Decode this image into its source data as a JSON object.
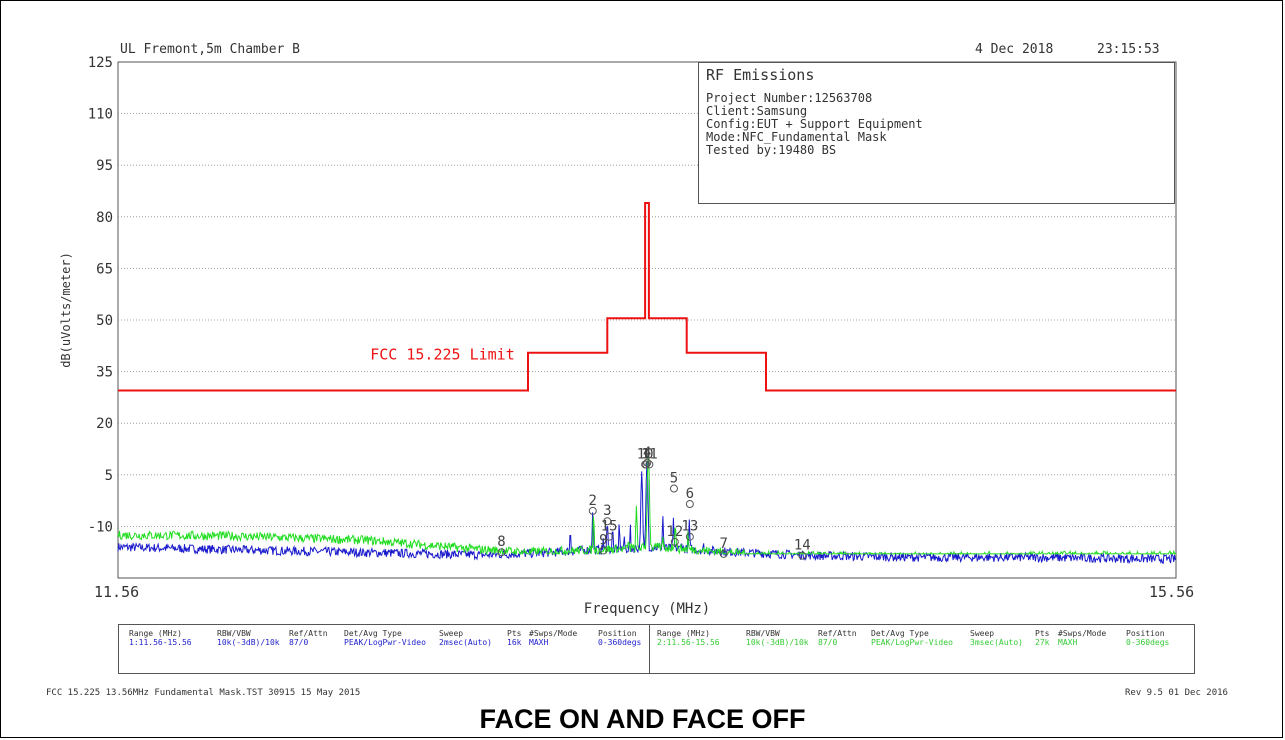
{
  "header": {
    "site": "UL Fremont,5m Chamber B",
    "date": "4 Dec 2018",
    "time": "23:15:53"
  },
  "info_box": {
    "title": "RF Emissions",
    "lines": [
      "Project Number:12563708",
      "Client:Samsung",
      "Config:EUT + Support Equipment",
      "Mode:NFC_Fundamental Mask",
      "Tested by:19480 BS"
    ]
  },
  "chart_data": {
    "type": "line",
    "xlabel": "Frequency (MHz)",
    "ylabel": "dB(uVolts/meter)",
    "xlim": [
      11.56,
      15.56
    ],
    "ylim": [
      -25,
      125
    ],
    "x_tick_labels": [
      "11.56",
      "15.56"
    ],
    "y_ticks": [
      125,
      110,
      95,
      80,
      65,
      50,
      35,
      20,
      5,
      -10
    ],
    "grid": true,
    "limit_line": {
      "name": "FCC 15.225 Limit",
      "color": "#ee1111",
      "points": [
        [
          11.56,
          29.5
        ],
        [
          13.11,
          29.5
        ],
        [
          13.11,
          40.5
        ],
        [
          13.41,
          40.5
        ],
        [
          13.41,
          50.5
        ],
        [
          13.553,
          50.5
        ],
        [
          13.553,
          84
        ],
        [
          13.567,
          84
        ],
        [
          13.567,
          50.5
        ],
        [
          13.71,
          50.5
        ],
        [
          13.71,
          40.5
        ],
        [
          14.01,
          40.5
        ],
        [
          14.01,
          29.5
        ],
        [
          15.56,
          29.5
        ]
      ]
    },
    "series": [
      {
        "color": "#1a1acc",
        "base": [
          [
            11.56,
            -16.0
          ],
          [
            12.0,
            -16.8
          ],
          [
            12.5,
            -17.6
          ],
          [
            12.95,
            -18.3
          ],
          [
            13.2,
            -17.6
          ],
          [
            13.3,
            -17.0
          ],
          [
            13.5,
            -16.5
          ],
          [
            13.56,
            -16.0
          ],
          [
            13.7,
            -16.5
          ],
          [
            13.9,
            -17.5
          ],
          [
            14.2,
            -18.5
          ],
          [
            14.6,
            -19.0
          ],
          [
            15.0,
            -19.0
          ],
          [
            15.56,
            -19.5
          ]
        ],
        "peaks": [
          [
            13.27,
            -11.0
          ],
          [
            13.355,
            -5.5
          ],
          [
            13.395,
            -13.0
          ],
          [
            13.41,
            -8.5
          ],
          [
            13.43,
            -10.0
          ],
          [
            13.455,
            -9.0
          ],
          [
            13.475,
            -12.5
          ],
          [
            13.497,
            -9.5
          ],
          [
            13.54,
            6.0
          ],
          [
            13.56,
            9.0
          ],
          [
            13.59,
            -16.0
          ],
          [
            13.62,
            -7.0
          ],
          [
            13.66,
            -7.5
          ],
          [
            13.69,
            -13.5
          ],
          [
            13.72,
            -8.0
          ],
          [
            13.775,
            -14.5
          ]
        ]
      },
      {
        "color": "#22dd22",
        "base": [
          [
            11.56,
            -12.5
          ],
          [
            12.0,
            -12.8
          ],
          [
            12.5,
            -14.0
          ],
          [
            12.9,
            -16.5
          ],
          [
            13.1,
            -17.5
          ],
          [
            13.3,
            -17.0
          ],
          [
            13.5,
            -16.5
          ],
          [
            13.56,
            -16.0
          ],
          [
            13.7,
            -16.5
          ],
          [
            14.0,
            -18.5
          ],
          [
            14.5,
            -18.8
          ],
          [
            15.0,
            -18.5
          ],
          [
            15.56,
            -18.5
          ]
        ],
        "peaks": [
          [
            13.358,
            -6.5
          ],
          [
            13.415,
            -15.0
          ],
          [
            13.45,
            -15.5
          ],
          [
            13.49,
            -13.0
          ],
          [
            13.5,
            -15.0
          ],
          [
            13.52,
            -4.0
          ],
          [
            13.565,
            12.0
          ],
          [
            13.598,
            -16.0
          ],
          [
            13.62,
            -13.0
          ],
          [
            13.655,
            -14.5
          ],
          [
            13.667,
            -9.0
          ],
          [
            13.715,
            -11.0
          ]
        ]
      }
    ],
    "markers": [
      {
        "label": "1",
        "x": 13.557,
        "y": 8.0
      },
      {
        "label": "4",
        "x": 13.561,
        "y": 8.5
      },
      {
        "label": "10",
        "x": 13.553,
        "y": 8.0
      },
      {
        "label": "11",
        "x": 13.569,
        "y": 8.0
      },
      {
        "label": "2",
        "x": 13.355,
        "y": -5.5
      },
      {
        "label": "3",
        "x": 13.41,
        "y": -8.5
      },
      {
        "label": "15",
        "x": 13.417,
        "y": -13.0
      },
      {
        "label": "9",
        "x": 13.395,
        "y": -17.0
      },
      {
        "label": "5",
        "x": 13.662,
        "y": 1.0
      },
      {
        "label": "6",
        "x": 13.722,
        "y": -3.5
      },
      {
        "label": "12",
        "x": 13.665,
        "y": -14.5
      },
      {
        "label": "13",
        "x": 13.722,
        "y": -13.0
      },
      {
        "label": "7",
        "x": 13.85,
        "y": -18.0
      },
      {
        "label": "8",
        "x": 13.01,
        "y": -17.5
      },
      {
        "label": "14",
        "x": 14.147,
        "y": -18.5
      }
    ]
  },
  "settings": {
    "headers": [
      "Range (MHz)",
      "RBW/VBW",
      "Ref/Attn",
      "Det/Avg Type",
      "Sweep",
      "Pts",
      "#Swps/Mode",
      "Position"
    ],
    "row1": [
      "1:11.56-15.56",
      "10k(-3dB)/10k",
      "87/0",
      "PEAK/LogPwr-Video",
      "2msec(Auto)",
      "16k",
      "MAXH",
      "0-360degs"
    ],
    "row2": [
      "2:11.56-15.56",
      "10k(-3dB)/10k",
      "87/0",
      "PEAK/LogPwr-Video",
      "3msec(Auto)",
      "27k",
      "MAXH",
      "0-360degs"
    ]
  },
  "footer": {
    "left": "FCC 15.225 13.56MHz Fundamental Mask.TST 30915 15 May 2015",
    "right": "Rev 9.5 01 Dec 2016"
  },
  "caption": "FACE ON AND FACE OFF",
  "colors": {
    "limit": "#ee1111",
    "trace1": "#1a1acc",
    "trace2": "#22dd22",
    "grid": "#888888",
    "axis_text": "#333333"
  }
}
